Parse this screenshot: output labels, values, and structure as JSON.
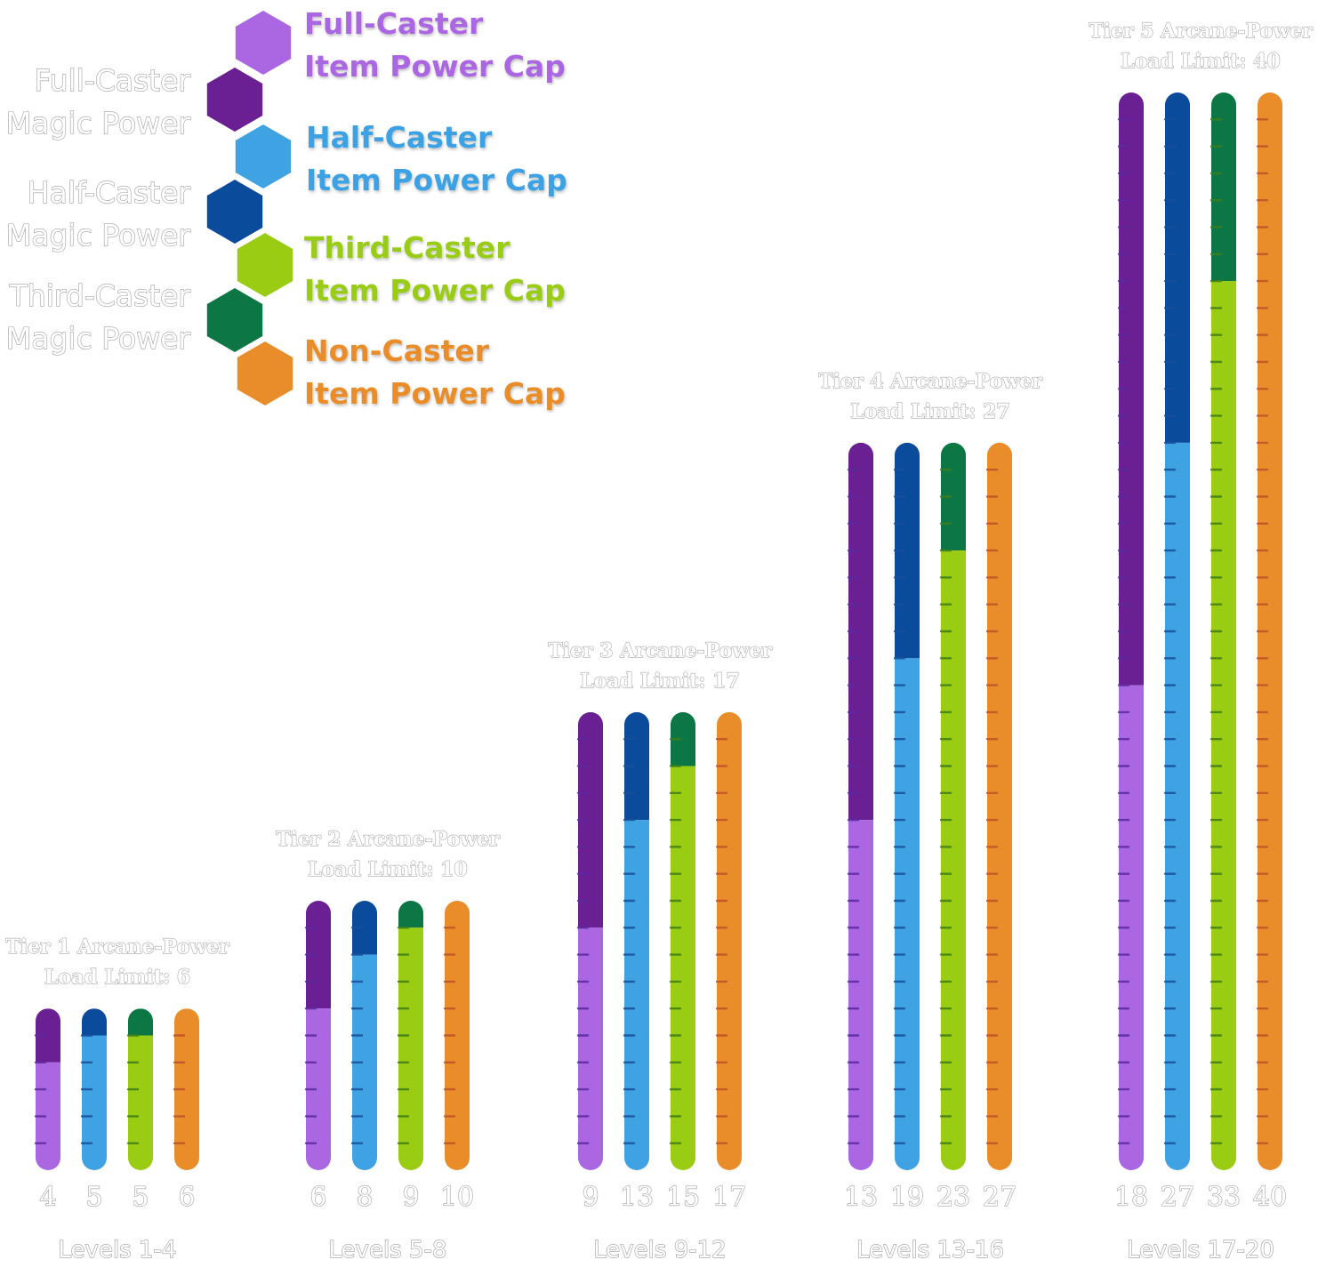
{
  "colors": {
    "full_cap": "#ab66e2",
    "full_magic": "#6a1f92",
    "half_cap": "#3ea2e3",
    "half_magic": "#0a4b9c",
    "third_cap": "#99cc12",
    "third_magic": "#0c7745",
    "non_cap": "#e98d2a",
    "full_tick": "#5a2aa0",
    "half_tick": "#1a4f9a",
    "third_tick": "#3f7d1a",
    "non_tick": "#c0502a"
  },
  "legend": {
    "full_cap": [
      "Full-Caster",
      "Item Power Cap"
    ],
    "full_magic": [
      "Full-Caster",
      "Magic Power"
    ],
    "half_cap": [
      "Half-Caster",
      "Item Power Cap"
    ],
    "half_magic": [
      "Half-Caster",
      "Magic Power"
    ],
    "third_cap": [
      "Third-Caster",
      "Item Power Cap"
    ],
    "third_magic": [
      "Third-Caster",
      "Magic Power"
    ],
    "non_cap": [
      "Non-Caster",
      "Item Power Cap"
    ]
  },
  "chart_data": {
    "type": "bar",
    "series": [
      {
        "key": "full",
        "name": "Full-Caster Item Power Cap",
        "values": [
          4,
          6,
          9,
          13,
          18
        ]
      },
      {
        "key": "half",
        "name": "Half-Caster Item Power Cap",
        "values": [
          5,
          8,
          13,
          19,
          27
        ]
      },
      {
        "key": "third",
        "name": "Third-Caster Item Power Cap",
        "values": [
          5,
          9,
          15,
          23,
          33
        ]
      },
      {
        "key": "non",
        "name": "Non-Caster Item Power Cap",
        "values": [
          6,
          10,
          17,
          27,
          40
        ]
      }
    ],
    "load_limits": [
      6,
      10,
      17,
      27,
      40
    ],
    "groups": [
      {
        "title": "Tier 1 Arcane-Power",
        "limit_label": "Load Limit: 6",
        "levels": "Levels 1-4"
      },
      {
        "title": "Tier 2 Arcane-Power",
        "limit_label": "Load Limit: 10",
        "levels": "Levels 5-8"
      },
      {
        "title": "Tier 3 Arcane-Power",
        "limit_label": "Load Limit: 17",
        "levels": "Levels 9-12"
      },
      {
        "title": "Tier 4 Arcane-Power",
        "limit_label": "Load Limit: 27",
        "levels": "Levels 13-16"
      },
      {
        "title": "Tier 5 Arcane-Power",
        "limit_label": "Load Limit: 40",
        "levels": "Levels 17-20"
      }
    ]
  }
}
